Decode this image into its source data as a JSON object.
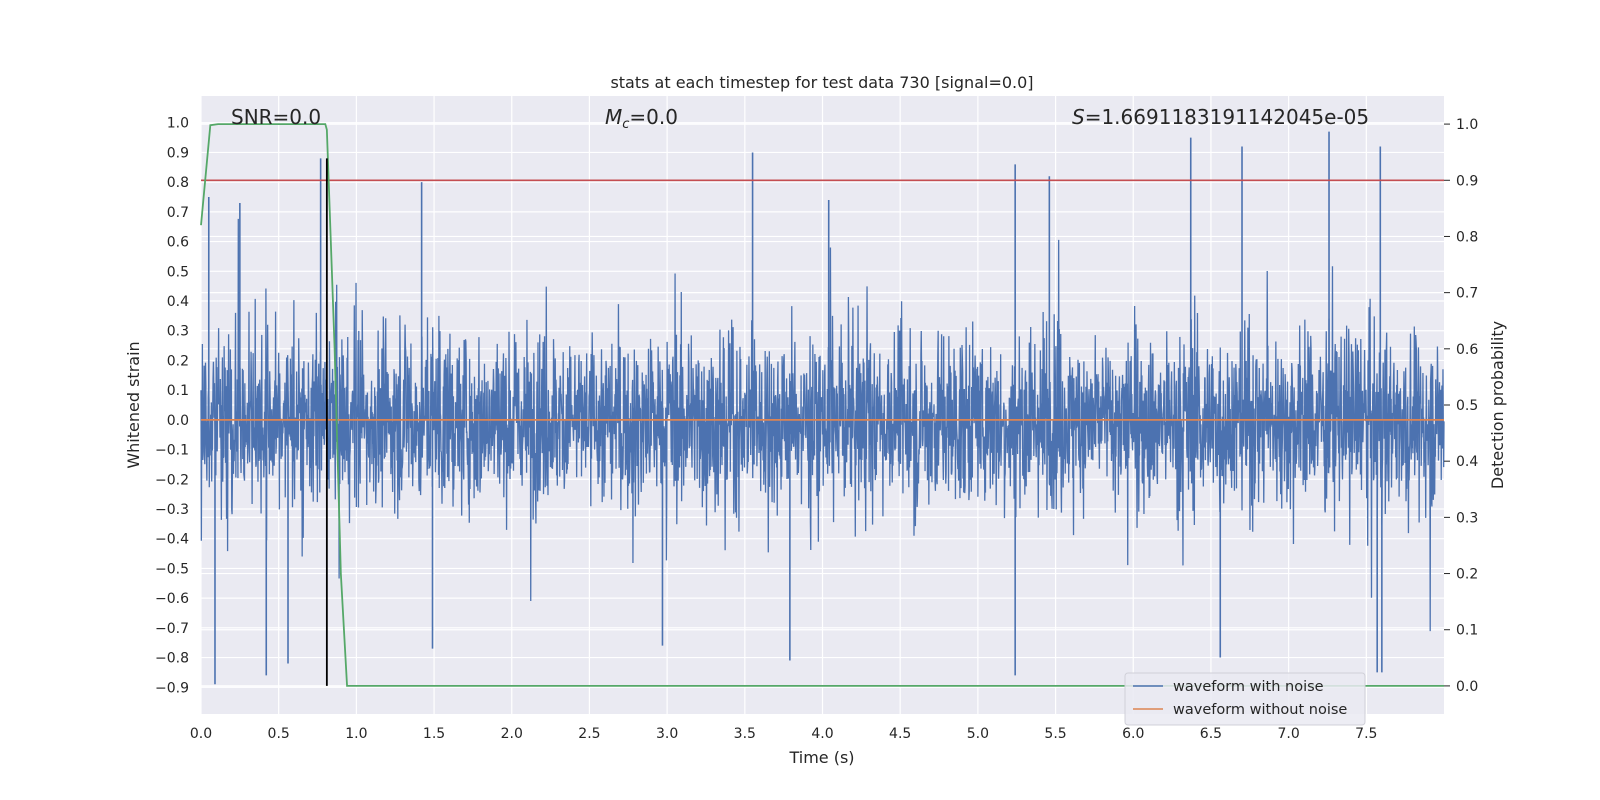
{
  "chart_data": {
    "type": "line",
    "title": "stats at each timestep for test data 730 [signal=0.0]",
    "xlabel": "Time (s)",
    "ylabel": "Whitened strain",
    "y2label": "Detection probability",
    "xlim": [
      0.0,
      8.0
    ],
    "ylim": [
      -0.99,
      1.09
    ],
    "y2lim": [
      -0.05,
      1.05
    ],
    "xticks": [
      "0.0",
      "0.5",
      "1.0",
      "1.5",
      "2.0",
      "2.5",
      "3.0",
      "3.5",
      "4.0",
      "4.5",
      "5.0",
      "5.5",
      "6.0",
      "6.5",
      "7.0",
      "7.5"
    ],
    "yticks": [
      "1.0",
      "0.9",
      "0.8",
      "0.7",
      "0.6",
      "0.5",
      "0.4",
      "0.3",
      "0.2",
      "0.1",
      "0.0",
      "-0.1",
      "-0.2",
      "-0.3",
      "-0.4",
      "-0.5",
      "-0.6",
      "-0.7",
      "-0.8",
      "-0.9"
    ],
    "y2ticks": [
      "1.0",
      "0.9",
      "0.8",
      "0.7",
      "0.6",
      "0.5",
      "0.4",
      "0.3",
      "0.2",
      "0.1",
      "0.0"
    ],
    "grid": true,
    "annotations": {
      "snr": "SNR=0.0",
      "mc_symbol": "M",
      "mc_sub": "c",
      "mc_value": "=0.0",
      "s_symbol": "S",
      "s_value": "=1.6691183191142045e-05"
    },
    "legend": {
      "position": "lower-right",
      "entries": [
        "waveform with noise",
        "waveform without noise"
      ]
    },
    "series": [
      {
        "name": "waveform with noise",
        "color": "#4c72b0",
        "axis": "left",
        "envelope_note": "dense noise, approx uniform in time",
        "peaks_positive": [
          [
            0.77,
            0.88
          ],
          [
            3.55,
            0.9
          ],
          [
            5.24,
            0.86
          ],
          [
            5.46,
            0.82
          ],
          [
            6.37,
            0.95
          ],
          [
            6.7,
            0.92
          ],
          [
            7.26,
            0.97
          ],
          [
            7.59,
            0.92
          ],
          [
            1.42,
            0.8
          ],
          [
            4.04,
            0.74
          ],
          [
            0.25,
            0.73
          ],
          [
            0.05,
            0.75
          ]
        ],
        "peaks_negative": [
          [
            0.09,
            -0.89
          ],
          [
            0.42,
            -0.86
          ],
          [
            0.56,
            -0.82
          ],
          [
            3.79,
            -0.81
          ],
          [
            5.24,
            -0.86
          ],
          [
            6.56,
            -0.8
          ],
          [
            7.6,
            -0.85
          ],
          [
            7.57,
            -0.85
          ],
          [
            2.97,
            -0.76
          ],
          [
            1.49,
            -0.77
          ]
        ]
      },
      {
        "name": "waveform without noise",
        "color": "#dd8452",
        "axis": "left",
        "x": [
          0.0,
          8.0
        ],
        "y": [
          0.0,
          0.0
        ]
      },
      {
        "name": "detection probability",
        "color": "#55a868",
        "axis": "right",
        "x": [
          0.0,
          0.06,
          0.11,
          0.2,
          0.4,
          0.6,
          0.8,
          0.81,
          0.86,
          0.9,
          0.94,
          8.0
        ],
        "y": [
          0.82,
          0.998,
          1.0,
          1.0,
          1.0,
          1.0,
          1.0,
          0.99,
          0.6,
          0.2,
          0.0,
          0.0
        ]
      }
    ],
    "threshold": {
      "color": "#c44e52",
      "axis": "right",
      "value": 0.9
    },
    "marker_line": {
      "color": "#000000",
      "x": 0.81,
      "from_right": 0.0,
      "to_left": 0.88
    }
  }
}
